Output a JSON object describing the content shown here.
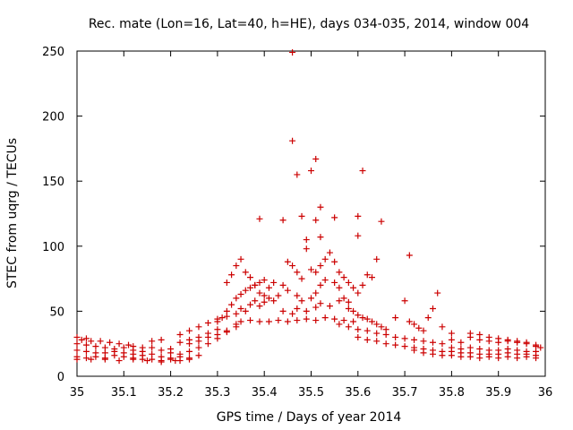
{
  "chart_data": {
    "type": "scatter",
    "title": "Rec. mate (Lon=16, Lat=40, h=HE), days 034-035, 2014, window 004",
    "xlabel": "GPS time / Days of year 2014",
    "ylabel": "STEC from uqrg / TECUs",
    "xlim": [
      35,
      36
    ],
    "ylim": [
      0,
      250
    ],
    "xticks": [
      "35",
      "35.1",
      "35.2",
      "35.3",
      "35.4",
      "35.5",
      "35.6",
      "35.7",
      "35.8",
      "35.9",
      "36"
    ],
    "yticks": [
      "0",
      "50",
      "100",
      "150",
      "200",
      "250"
    ],
    "grid": false,
    "series": [
      {
        "marker": "plus",
        "color": "#cc0000",
        "points": [
          [
            35.0,
            30
          ],
          [
            35.01,
            28
          ],
          [
            35.02,
            29
          ],
          [
            35.03,
            27
          ],
          [
            35.05,
            27
          ],
          [
            35.07,
            26
          ],
          [
            35.09,
            25
          ],
          [
            35.11,
            24
          ],
          [
            35.12,
            23
          ],
          [
            35.14,
            22
          ],
          [
            35.16,
            27
          ],
          [
            35.18,
            28
          ],
          [
            35.0,
            25
          ],
          [
            35.02,
            24
          ],
          [
            35.04,
            23
          ],
          [
            35.06,
            22
          ],
          [
            35.08,
            21
          ],
          [
            35.1,
            22
          ],
          [
            35.12,
            20
          ],
          [
            35.14,
            19
          ],
          [
            35.0,
            20
          ],
          [
            35.02,
            19
          ],
          [
            35.04,
            18
          ],
          [
            35.06,
            18
          ],
          [
            35.08,
            19
          ],
          [
            35.1,
            18
          ],
          [
            35.12,
            17
          ],
          [
            35.14,
            16
          ],
          [
            35.16,
            17
          ],
          [
            35.18,
            15
          ],
          [
            35.2,
            14
          ],
          [
            35.22,
            15
          ],
          [
            35.0,
            15
          ],
          [
            35.02,
            14
          ],
          [
            35.04,
            15
          ],
          [
            35.06,
            14
          ],
          [
            35.08,
            16
          ],
          [
            35.1,
            15
          ],
          [
            35.12,
            14
          ],
          [
            35.14,
            13
          ],
          [
            35.16,
            13
          ],
          [
            35.18,
            12
          ],
          [
            35.2,
            13
          ],
          [
            35.22,
            12
          ],
          [
            35.24,
            14
          ],
          [
            35.26,
            16
          ],
          [
            35.0,
            13
          ],
          [
            35.03,
            13
          ],
          [
            35.06,
            13
          ],
          [
            35.09,
            12
          ],
          [
            35.12,
            13
          ],
          [
            35.15,
            12
          ],
          [
            35.18,
            11
          ],
          [
            35.21,
            12
          ],
          [
            35.24,
            13
          ],
          [
            35.16,
            22
          ],
          [
            35.18,
            20
          ],
          [
            35.2,
            21
          ],
          [
            35.22,
            26
          ],
          [
            35.24,
            28
          ],
          [
            35.26,
            30
          ],
          [
            35.28,
            33
          ],
          [
            35.3,
            36
          ],
          [
            35.2,
            18
          ],
          [
            35.22,
            17
          ],
          [
            35.24,
            19
          ],
          [
            35.26,
            22
          ],
          [
            35.28,
            25
          ],
          [
            35.3,
            29
          ],
          [
            35.32,
            34
          ],
          [
            35.34,
            38
          ],
          [
            35.22,
            32
          ],
          [
            35.24,
            35
          ],
          [
            35.26,
            38
          ],
          [
            35.28,
            41
          ],
          [
            35.3,
            44
          ],
          [
            35.32,
            46
          ],
          [
            35.24,
            25
          ],
          [
            35.26,
            27
          ],
          [
            35.28,
            30
          ],
          [
            35.3,
            32
          ],
          [
            35.32,
            35
          ],
          [
            35.34,
            40
          ],
          [
            35.3,
            42
          ],
          [
            35.31,
            45
          ],
          [
            35.32,
            50
          ],
          [
            35.33,
            55
          ],
          [
            35.34,
            60
          ],
          [
            35.35,
            63
          ],
          [
            35.36,
            66
          ],
          [
            35.37,
            68
          ],
          [
            35.38,
            70
          ],
          [
            35.39,
            72
          ],
          [
            35.4,
            74
          ],
          [
            35.32,
            72
          ],
          [
            35.33,
            78
          ],
          [
            35.34,
            85
          ],
          [
            35.35,
            90
          ],
          [
            35.36,
            80
          ],
          [
            35.37,
            76
          ],
          [
            35.38,
            70
          ],
          [
            35.39,
            64
          ],
          [
            35.4,
            62
          ],
          [
            35.41,
            68
          ],
          [
            35.42,
            72
          ],
          [
            35.34,
            48
          ],
          [
            35.35,
            52
          ],
          [
            35.36,
            50
          ],
          [
            35.37,
            55
          ],
          [
            35.38,
            58
          ],
          [
            35.39,
            54
          ],
          [
            35.4,
            57
          ],
          [
            35.41,
            60
          ],
          [
            35.42,
            58
          ],
          [
            35.43,
            62
          ],
          [
            35.35,
            42
          ],
          [
            35.37,
            43
          ],
          [
            35.39,
            42
          ],
          [
            35.41,
            42
          ],
          [
            35.43,
            43
          ],
          [
            35.45,
            42
          ],
          [
            35.47,
            43
          ],
          [
            35.49,
            44
          ],
          [
            35.51,
            43
          ],
          [
            35.53,
            45
          ],
          [
            35.55,
            44
          ],
          [
            35.57,
            43
          ],
          [
            35.59,
            42
          ],
          [
            35.39,
            121
          ],
          [
            35.44,
            120
          ],
          [
            35.46,
            181
          ],
          [
            35.46,
            249
          ],
          [
            35.47,
            155
          ],
          [
            35.48,
            123
          ],
          [
            35.49,
            98
          ],
          [
            35.49,
            105
          ],
          [
            35.45,
            88
          ],
          [
            35.46,
            85
          ],
          [
            35.47,
            80
          ],
          [
            35.48,
            75
          ],
          [
            35.5,
            82
          ],
          [
            35.51,
            80
          ],
          [
            35.52,
            85
          ],
          [
            35.53,
            90
          ],
          [
            35.54,
            95
          ],
          [
            35.55,
            88
          ],
          [
            35.44,
            70
          ],
          [
            35.45,
            66
          ],
          [
            35.47,
            62
          ],
          [
            35.48,
            58
          ],
          [
            35.5,
            60
          ],
          [
            35.51,
            64
          ],
          [
            35.52,
            70
          ],
          [
            35.53,
            74
          ],
          [
            35.55,
            72
          ],
          [
            35.56,
            68
          ],
          [
            35.44,
            50
          ],
          [
            35.46,
            48
          ],
          [
            35.47,
            52
          ],
          [
            35.49,
            50
          ],
          [
            35.51,
            53
          ],
          [
            35.52,
            56
          ],
          [
            35.54,
            54
          ],
          [
            35.56,
            58
          ],
          [
            35.57,
            60
          ],
          [
            35.58,
            57
          ],
          [
            35.5,
            158
          ],
          [
            35.51,
            167
          ],
          [
            35.52,
            130
          ],
          [
            35.52,
            107
          ],
          [
            35.51,
            120
          ],
          [
            35.55,
            122
          ],
          [
            35.6,
            123
          ],
          [
            35.6,
            108
          ],
          [
            35.61,
            158
          ],
          [
            35.65,
            119
          ],
          [
            35.56,
            80
          ],
          [
            35.57,
            76
          ],
          [
            35.58,
            72
          ],
          [
            35.59,
            68
          ],
          [
            35.6,
            64
          ],
          [
            35.61,
            70
          ],
          [
            35.62,
            78
          ],
          [
            35.63,
            76
          ],
          [
            35.64,
            90
          ],
          [
            35.58,
            52
          ],
          [
            35.59,
            50
          ],
          [
            35.6,
            47
          ],
          [
            35.61,
            45
          ],
          [
            35.62,
            44
          ],
          [
            35.63,
            42
          ],
          [
            35.64,
            40
          ],
          [
            35.65,
            38
          ],
          [
            35.66,
            36
          ],
          [
            35.56,
            40
          ],
          [
            35.58,
            38
          ],
          [
            35.6,
            36
          ],
          [
            35.62,
            35
          ],
          [
            35.64,
            33
          ],
          [
            35.66,
            32
          ],
          [
            35.68,
            30
          ],
          [
            35.7,
            29
          ],
          [
            35.72,
            28
          ],
          [
            35.74,
            27
          ],
          [
            35.76,
            26
          ],
          [
            35.78,
            25
          ],
          [
            35.6,
            30
          ],
          [
            35.62,
            28
          ],
          [
            35.64,
            27
          ],
          [
            35.66,
            25
          ],
          [
            35.68,
            24
          ],
          [
            35.7,
            23
          ],
          [
            35.72,
            22
          ],
          [
            35.74,
            21
          ],
          [
            35.76,
            20
          ],
          [
            35.78,
            19
          ],
          [
            35.8,
            19
          ],
          [
            35.68,
            45
          ],
          [
            35.7,
            58
          ],
          [
            35.71,
            93
          ],
          [
            35.71,
            42
          ],
          [
            35.72,
            40
          ],
          [
            35.73,
            37
          ],
          [
            35.74,
            35
          ],
          [
            35.75,
            45
          ],
          [
            35.76,
            52
          ],
          [
            35.77,
            64
          ],
          [
            35.78,
            38
          ],
          [
            35.8,
            33
          ],
          [
            35.72,
            20
          ],
          [
            35.74,
            18
          ],
          [
            35.76,
            17
          ],
          [
            35.78,
            16
          ],
          [
            35.8,
            16
          ],
          [
            35.82,
            15
          ],
          [
            35.84,
            15
          ],
          [
            35.86,
            14
          ],
          [
            35.88,
            15
          ],
          [
            35.9,
            14
          ],
          [
            35.92,
            15
          ],
          [
            35.94,
            14
          ],
          [
            35.96,
            15
          ],
          [
            35.98,
            14
          ],
          [
            35.8,
            28
          ],
          [
            35.82,
            26
          ],
          [
            35.84,
            30
          ],
          [
            35.86,
            28
          ],
          [
            35.88,
            27
          ],
          [
            35.9,
            26
          ],
          [
            35.92,
            27
          ],
          [
            35.94,
            26
          ],
          [
            35.96,
            25
          ],
          [
            35.98,
            24
          ],
          [
            35.8,
            22
          ],
          [
            35.82,
            21
          ],
          [
            35.84,
            22
          ],
          [
            35.86,
            21
          ],
          [
            35.88,
            20
          ],
          [
            35.9,
            20
          ],
          [
            35.92,
            21
          ],
          [
            35.94,
            20
          ],
          [
            35.96,
            19
          ],
          [
            35.98,
            19
          ],
          [
            35.82,
            18
          ],
          [
            35.84,
            18
          ],
          [
            35.86,
            17
          ],
          [
            35.88,
            17
          ],
          [
            35.9,
            17
          ],
          [
            35.92,
            18
          ],
          [
            35.94,
            17
          ],
          [
            35.96,
            17
          ],
          [
            35.98,
            16
          ],
          [
            35.99,
            22
          ],
          [
            35.84,
            33
          ],
          [
            35.86,
            32
          ],
          [
            35.88,
            30
          ],
          [
            35.9,
            29
          ],
          [
            35.92,
            28
          ],
          [
            35.94,
            27
          ],
          [
            35.96,
            26
          ],
          [
            35.98,
            23
          ]
        ]
      }
    ]
  }
}
